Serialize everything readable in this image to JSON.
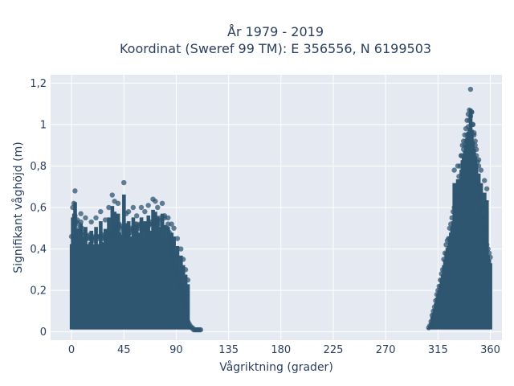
{
  "chart_data": {
    "type": "scatter",
    "title": "År 1979 - 2019",
    "subtitle": "Koordinat (Sweref 99 TM): E 356556, N 6199503",
    "xlabel": "Vågriktning (grader)",
    "ylabel": "Signifikant våghöjd (m)",
    "xlim": [
      -18,
      370
    ],
    "ylim": [
      -0.04,
      1.24
    ],
    "x_ticks": [
      0,
      45,
      90,
      135,
      180,
      225,
      270,
      315,
      360
    ],
    "x_tick_labels": [
      "0",
      "45",
      "90",
      "135",
      "180",
      "225",
      "270",
      "315",
      "360"
    ],
    "y_ticks": [
      0,
      0.2,
      0.4,
      0.6,
      0.8,
      1.0,
      1.2
    ],
    "y_tick_labels": [
      "0",
      "0,2",
      "0,4",
      "0,6",
      "0,8",
      "1",
      "1,2"
    ],
    "grid": true,
    "colors": {
      "marker": "#2f5670",
      "plot_bg": "#e5e9f2",
      "grid": "#ffffff"
    },
    "series": [
      {
        "x": [
          0,
          1,
          2,
          3,
          4,
          5,
          6,
          7,
          8,
          9,
          10,
          11,
          12,
          13,
          14,
          15,
          16,
          17,
          18,
          19,
          20,
          21,
          22,
          23,
          24,
          25,
          26,
          27,
          28,
          29,
          30,
          31,
          32,
          33,
          34,
          35,
          36,
          37,
          38,
          39,
          40,
          41,
          42,
          43,
          44,
          45,
          46,
          47,
          48,
          49,
          50,
          51,
          52,
          53,
          54,
          55,
          56,
          57,
          58,
          59,
          60,
          61,
          62,
          63,
          64,
          65,
          66,
          67,
          68,
          69,
          70,
          71,
          72,
          73,
          74,
          75,
          76,
          77,
          78,
          79,
          80,
          81,
          82,
          83,
          84,
          85,
          86,
          87,
          88,
          89,
          90,
          91,
          92,
          93,
          94,
          95,
          96,
          97,
          98,
          99,
          100,
          101,
          102,
          103,
          104,
          105,
          106,
          107,
          108,
          109,
          110,
          111,
          307,
          308,
          309,
          310,
          311,
          312,
          313,
          314,
          315,
          316,
          317,
          318,
          319,
          320,
          321,
          322,
          323,
          324,
          325,
          326,
          327,
          328,
          329,
          330,
          331,
          332,
          333,
          334,
          335,
          336,
          337,
          338,
          339,
          340,
          341,
          342,
          343,
          344,
          345,
          346,
          347,
          348,
          349,
          350,
          351,
          352,
          353,
          354,
          355,
          356,
          357,
          358,
          359,
          360,
          3,
          8,
          12,
          17,
          21,
          25,
          29,
          32,
          35,
          37,
          40,
          45,
          47,
          49,
          53,
          56,
          60,
          63,
          66,
          70,
          72,
          74,
          78,
          80,
          83,
          86,
          88,
          91,
          94,
          96,
          98,
          100,
          329,
          332,
          335,
          337,
          338,
          339,
          340,
          341,
          342,
          343,
          344,
          345,
          346,
          347,
          348,
          350,
          352,
          355,
          357
        ],
        "y": [
          0.46,
          0.6,
          0.62,
          0.56,
          0.53,
          0.54,
          0.52,
          0.5,
          0.53,
          0.5,
          0.48,
          0.47,
          0.47,
          0.45,
          0.46,
          0.45,
          0.47,
          0.45,
          0.46,
          0.44,
          0.45,
          0.46,
          0.46,
          0.45,
          0.46,
          0.46,
          0.47,
          0.45,
          0.46,
          0.45,
          0.46,
          0.47,
          0.48,
          0.47,
          0.46,
          0.48,
          0.5,
          0.5,
          0.5,
          0.5,
          0.51,
          0.52,
          0.51,
          0.5,
          0.48,
          0.5,
          0.48,
          0.47,
          0.46,
          0.47,
          0.48,
          0.5,
          0.49,
          0.5,
          0.5,
          0.52,
          0.52,
          0.51,
          0.5,
          0.52,
          0.52,
          0.5,
          0.5,
          0.5,
          0.5,
          0.52,
          0.51,
          0.52,
          0.53,
          0.52,
          0.52,
          0.53,
          0.55,
          0.55,
          0.54,
          0.54,
          0.55,
          0.52,
          0.5,
          0.5,
          0.55,
          0.5,
          0.5,
          0.52,
          0.48,
          0.44,
          0.4,
          0.38,
          0.36,
          0.32,
          0.3,
          0.28,
          0.25,
          0.23,
          0.22,
          0.2,
          0.18,
          0.15,
          0.12,
          0.08,
          0.05,
          0.04,
          0.03,
          0.02,
          0.02,
          0.01,
          0.01,
          0.01,
          0.01,
          0.01,
          0.01,
          0.01,
          0.02,
          0.03,
          0.05,
          0.08,
          0.1,
          0.12,
          0.15,
          0.18,
          0.2,
          0.22,
          0.25,
          0.28,
          0.3,
          0.35,
          0.38,
          0.42,
          0.44,
          0.45,
          0.5,
          0.52,
          0.55,
          0.58,
          0.6,
          0.63,
          0.66,
          0.7,
          0.75,
          0.8,
          0.85,
          0.9,
          0.92,
          0.95,
          0.98,
          1.02,
          1.05,
          1.07,
          1.17,
          1.06,
          1.0,
          0.95,
          0.9,
          0.85,
          0.82,
          0.8,
          0.7,
          0.65,
          0.6,
          0.55,
          0.5,
          0.45,
          0.42,
          0.4,
          0.38,
          0.36,
          0.68,
          0.57,
          0.55,
          0.53,
          0.55,
          0.58,
          0.54,
          0.6,
          0.66,
          0.63,
          0.62,
          0.72,
          0.57,
          0.58,
          0.6,
          0.56,
          0.6,
          0.58,
          0.61,
          0.64,
          0.63,
          0.6,
          0.62,
          0.56,
          0.55,
          0.52,
          0.5,
          0.45,
          0.4,
          0.35,
          0.3,
          0.25,
          0.78,
          0.8,
          0.85,
          0.88,
          0.9,
          0.92,
          0.95,
          0.99,
          1.02,
          1.04,
          1.06,
          1.0,
          0.96,
          0.92,
          0.88,
          0.83,
          0.78,
          0.73,
          0.69
        ]
      }
    ]
  }
}
